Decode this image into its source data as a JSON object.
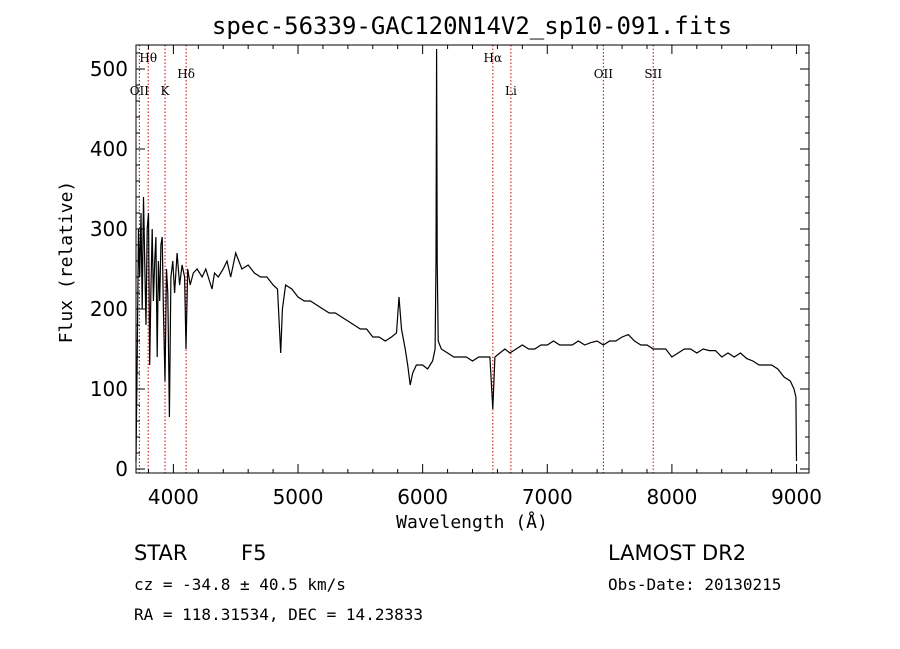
{
  "chart_data": {
    "type": "line",
    "title": "spec-56339-GAC120N14V2_sp10-091.fits",
    "xlabel": "Wavelength (Å)",
    "ylabel": "Flux (relative)",
    "xlim": [
      3700,
      9100
    ],
    "ylim": [
      -5,
      530
    ],
    "xticks": [
      4000,
      5000,
      6000,
      7000,
      8000,
      9000
    ],
    "yticks": [
      0,
      100,
      200,
      300,
      400,
      500
    ],
    "series": [
      {
        "name": "flux",
        "points": [
          [
            3700,
            10
          ],
          [
            3710,
            140
          ],
          [
            3720,
            300
          ],
          [
            3730,
            240
          ],
          [
            3740,
            320
          ],
          [
            3750,
            200
          ],
          [
            3760,
            340
          ],
          [
            3770,
            260
          ],
          [
            3780,
            180
          ],
          [
            3790,
            300
          ],
          [
            3800,
            320
          ],
          [
            3810,
            130
          ],
          [
            3820,
            230
          ],
          [
            3830,
            300
          ],
          [
            3840,
            210
          ],
          [
            3850,
            260
          ],
          [
            3860,
            290
          ],
          [
            3870,
            140
          ],
          [
            3880,
            260
          ],
          [
            3890,
            210
          ],
          [
            3900,
            280
          ],
          [
            3910,
            290
          ],
          [
            3920,
            200
          ],
          [
            3933,
            110
          ],
          [
            3945,
            250
          ],
          [
            3955,
            220
          ],
          [
            3968,
            65
          ],
          [
            3980,
            240
          ],
          [
            3995,
            260
          ],
          [
            4010,
            220
          ],
          [
            4030,
            270
          ],
          [
            4050,
            230
          ],
          [
            4070,
            255
          ],
          [
            4090,
            240
          ],
          [
            4101,
            150
          ],
          [
            4115,
            250
          ],
          [
            4135,
            230
          ],
          [
            4160,
            245
          ],
          [
            4190,
            250
          ],
          [
            4230,
            240
          ],
          [
            4260,
            250
          ],
          [
            4290,
            235
          ],
          [
            4310,
            225
          ],
          [
            4330,
            245
          ],
          [
            4360,
            240
          ],
          [
            4400,
            250
          ],
          [
            4430,
            260
          ],
          [
            4460,
            240
          ],
          [
            4500,
            270
          ],
          [
            4550,
            250
          ],
          [
            4600,
            255
          ],
          [
            4650,
            245
          ],
          [
            4700,
            240
          ],
          [
            4750,
            240
          ],
          [
            4800,
            230
          ],
          [
            4835,
            225
          ],
          [
            4850,
            180
          ],
          [
            4861,
            145
          ],
          [
            4875,
            200
          ],
          [
            4900,
            230
          ],
          [
            4950,
            225
          ],
          [
            5000,
            215
          ],
          [
            5050,
            210
          ],
          [
            5100,
            210
          ],
          [
            5150,
            205
          ],
          [
            5200,
            200
          ],
          [
            5250,
            195
          ],
          [
            5300,
            195
          ],
          [
            5350,
            190
          ],
          [
            5400,
            185
          ],
          [
            5450,
            180
          ],
          [
            5500,
            175
          ],
          [
            5550,
            175
          ],
          [
            5600,
            165
          ],
          [
            5650,
            165
          ],
          [
            5700,
            160
          ],
          [
            5750,
            165
          ],
          [
            5790,
            170
          ],
          [
            5810,
            215
          ],
          [
            5830,
            175
          ],
          [
            5860,
            150
          ],
          [
            5880,
            130
          ],
          [
            5900,
            105
          ],
          [
            5920,
            120
          ],
          [
            5950,
            130
          ],
          [
            6000,
            130
          ],
          [
            6040,
            125
          ],
          [
            6080,
            135
          ],
          [
            6100,
            150
          ],
          [
            6107,
            260
          ],
          [
            6112,
            525
          ],
          [
            6117,
            260
          ],
          [
            6125,
            160
          ],
          [
            6150,
            150
          ],
          [
            6200,
            145
          ],
          [
            6250,
            140
          ],
          [
            6300,
            140
          ],
          [
            6350,
            140
          ],
          [
            6400,
            135
          ],
          [
            6450,
            140
          ],
          [
            6500,
            140
          ],
          [
            6540,
            140
          ],
          [
            6563,
            75
          ],
          [
            6580,
            140
          ],
          [
            6620,
            145
          ],
          [
            6660,
            150
          ],
          [
            6700,
            145
          ],
          [
            6750,
            150
          ],
          [
            6800,
            155
          ],
          [
            6850,
            150
          ],
          [
            6900,
            150
          ],
          [
            6950,
            155
          ],
          [
            7000,
            155
          ],
          [
            7050,
            160
          ],
          [
            7100,
            155
          ],
          [
            7150,
            155
          ],
          [
            7200,
            155
          ],
          [
            7250,
            160
          ],
          [
            7300,
            155
          ],
          [
            7350,
            158
          ],
          [
            7400,
            160
          ],
          [
            7450,
            155
          ],
          [
            7500,
            160
          ],
          [
            7550,
            160
          ],
          [
            7600,
            165
          ],
          [
            7650,
            168
          ],
          [
            7700,
            160
          ],
          [
            7750,
            155
          ],
          [
            7800,
            155
          ],
          [
            7850,
            150
          ],
          [
            7900,
            150
          ],
          [
            7950,
            150
          ],
          [
            8000,
            140
          ],
          [
            8050,
            145
          ],
          [
            8100,
            150
          ],
          [
            8150,
            150
          ],
          [
            8200,
            145
          ],
          [
            8250,
            150
          ],
          [
            8300,
            148
          ],
          [
            8350,
            148
          ],
          [
            8400,
            140
          ],
          [
            8450,
            145
          ],
          [
            8500,
            140
          ],
          [
            8550,
            145
          ],
          [
            8600,
            138
          ],
          [
            8650,
            135
          ],
          [
            8700,
            130
          ],
          [
            8750,
            130
          ],
          [
            8800,
            130
          ],
          [
            8850,
            125
          ],
          [
            8900,
            115
          ],
          [
            8950,
            110
          ],
          [
            8980,
            100
          ],
          [
            8995,
            90
          ],
          [
            9000,
            10
          ]
        ]
      }
    ],
    "annotations": [
      {
        "label": "Hθ",
        "x": 3798,
        "row": 1
      },
      {
        "label": "OII",
        "x": 3727,
        "row": 3
      },
      {
        "label": "K",
        "x": 3933,
        "row": 3
      },
      {
        "label": "Hδ",
        "x": 4102,
        "row": 2
      },
      {
        "label": "Hα",
        "x": 6563,
        "row": 1
      },
      {
        "label": "Li",
        "x": 6708,
        "row": 3
      },
      {
        "label": "OII",
        "x": 7450,
        "row": 2
      },
      {
        "label": "SII",
        "x": 7850,
        "row": 2
      }
    ],
    "colors": {
      "line": "#000000",
      "marker_line": "#cc0000",
      "axes": "#000000"
    }
  },
  "info": {
    "class_label": "STAR",
    "subclass": "F5",
    "survey": "LAMOST DR2",
    "cz": "cz = -34.8 ± 40.5 km/s",
    "obs_date": "Obs-Date: 20130215",
    "coords": "RA = 118.31534, DEC =  14.23833"
  }
}
